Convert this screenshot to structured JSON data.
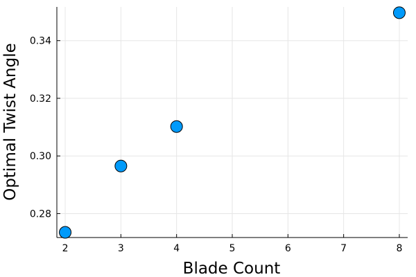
{
  "chart_data": {
    "type": "scatter",
    "xlabel": "Blade Count",
    "ylabel": "Optimal Twist Angle",
    "x": [
      2,
      3,
      4,
      8
    ],
    "y": [
      0.2735,
      0.2965,
      0.3102,
      0.3497
    ],
    "xlim": [
      1.85,
      8.15
    ],
    "ylim": [
      0.2717,
      0.3517
    ],
    "xticks": [
      2,
      3,
      4,
      5,
      6,
      7,
      8
    ],
    "xtick_labels": [
      "2",
      "3",
      "4",
      "5",
      "6",
      "7",
      "8"
    ],
    "yticks": [
      0.28,
      0.3,
      0.32,
      0.34
    ],
    "ytick_labels": [
      "0.28",
      "0.30",
      "0.32",
      "0.34"
    ],
    "grid": true,
    "legend": "none",
    "marker_color": "#009AFA",
    "marker_edge_color": "#000000"
  }
}
